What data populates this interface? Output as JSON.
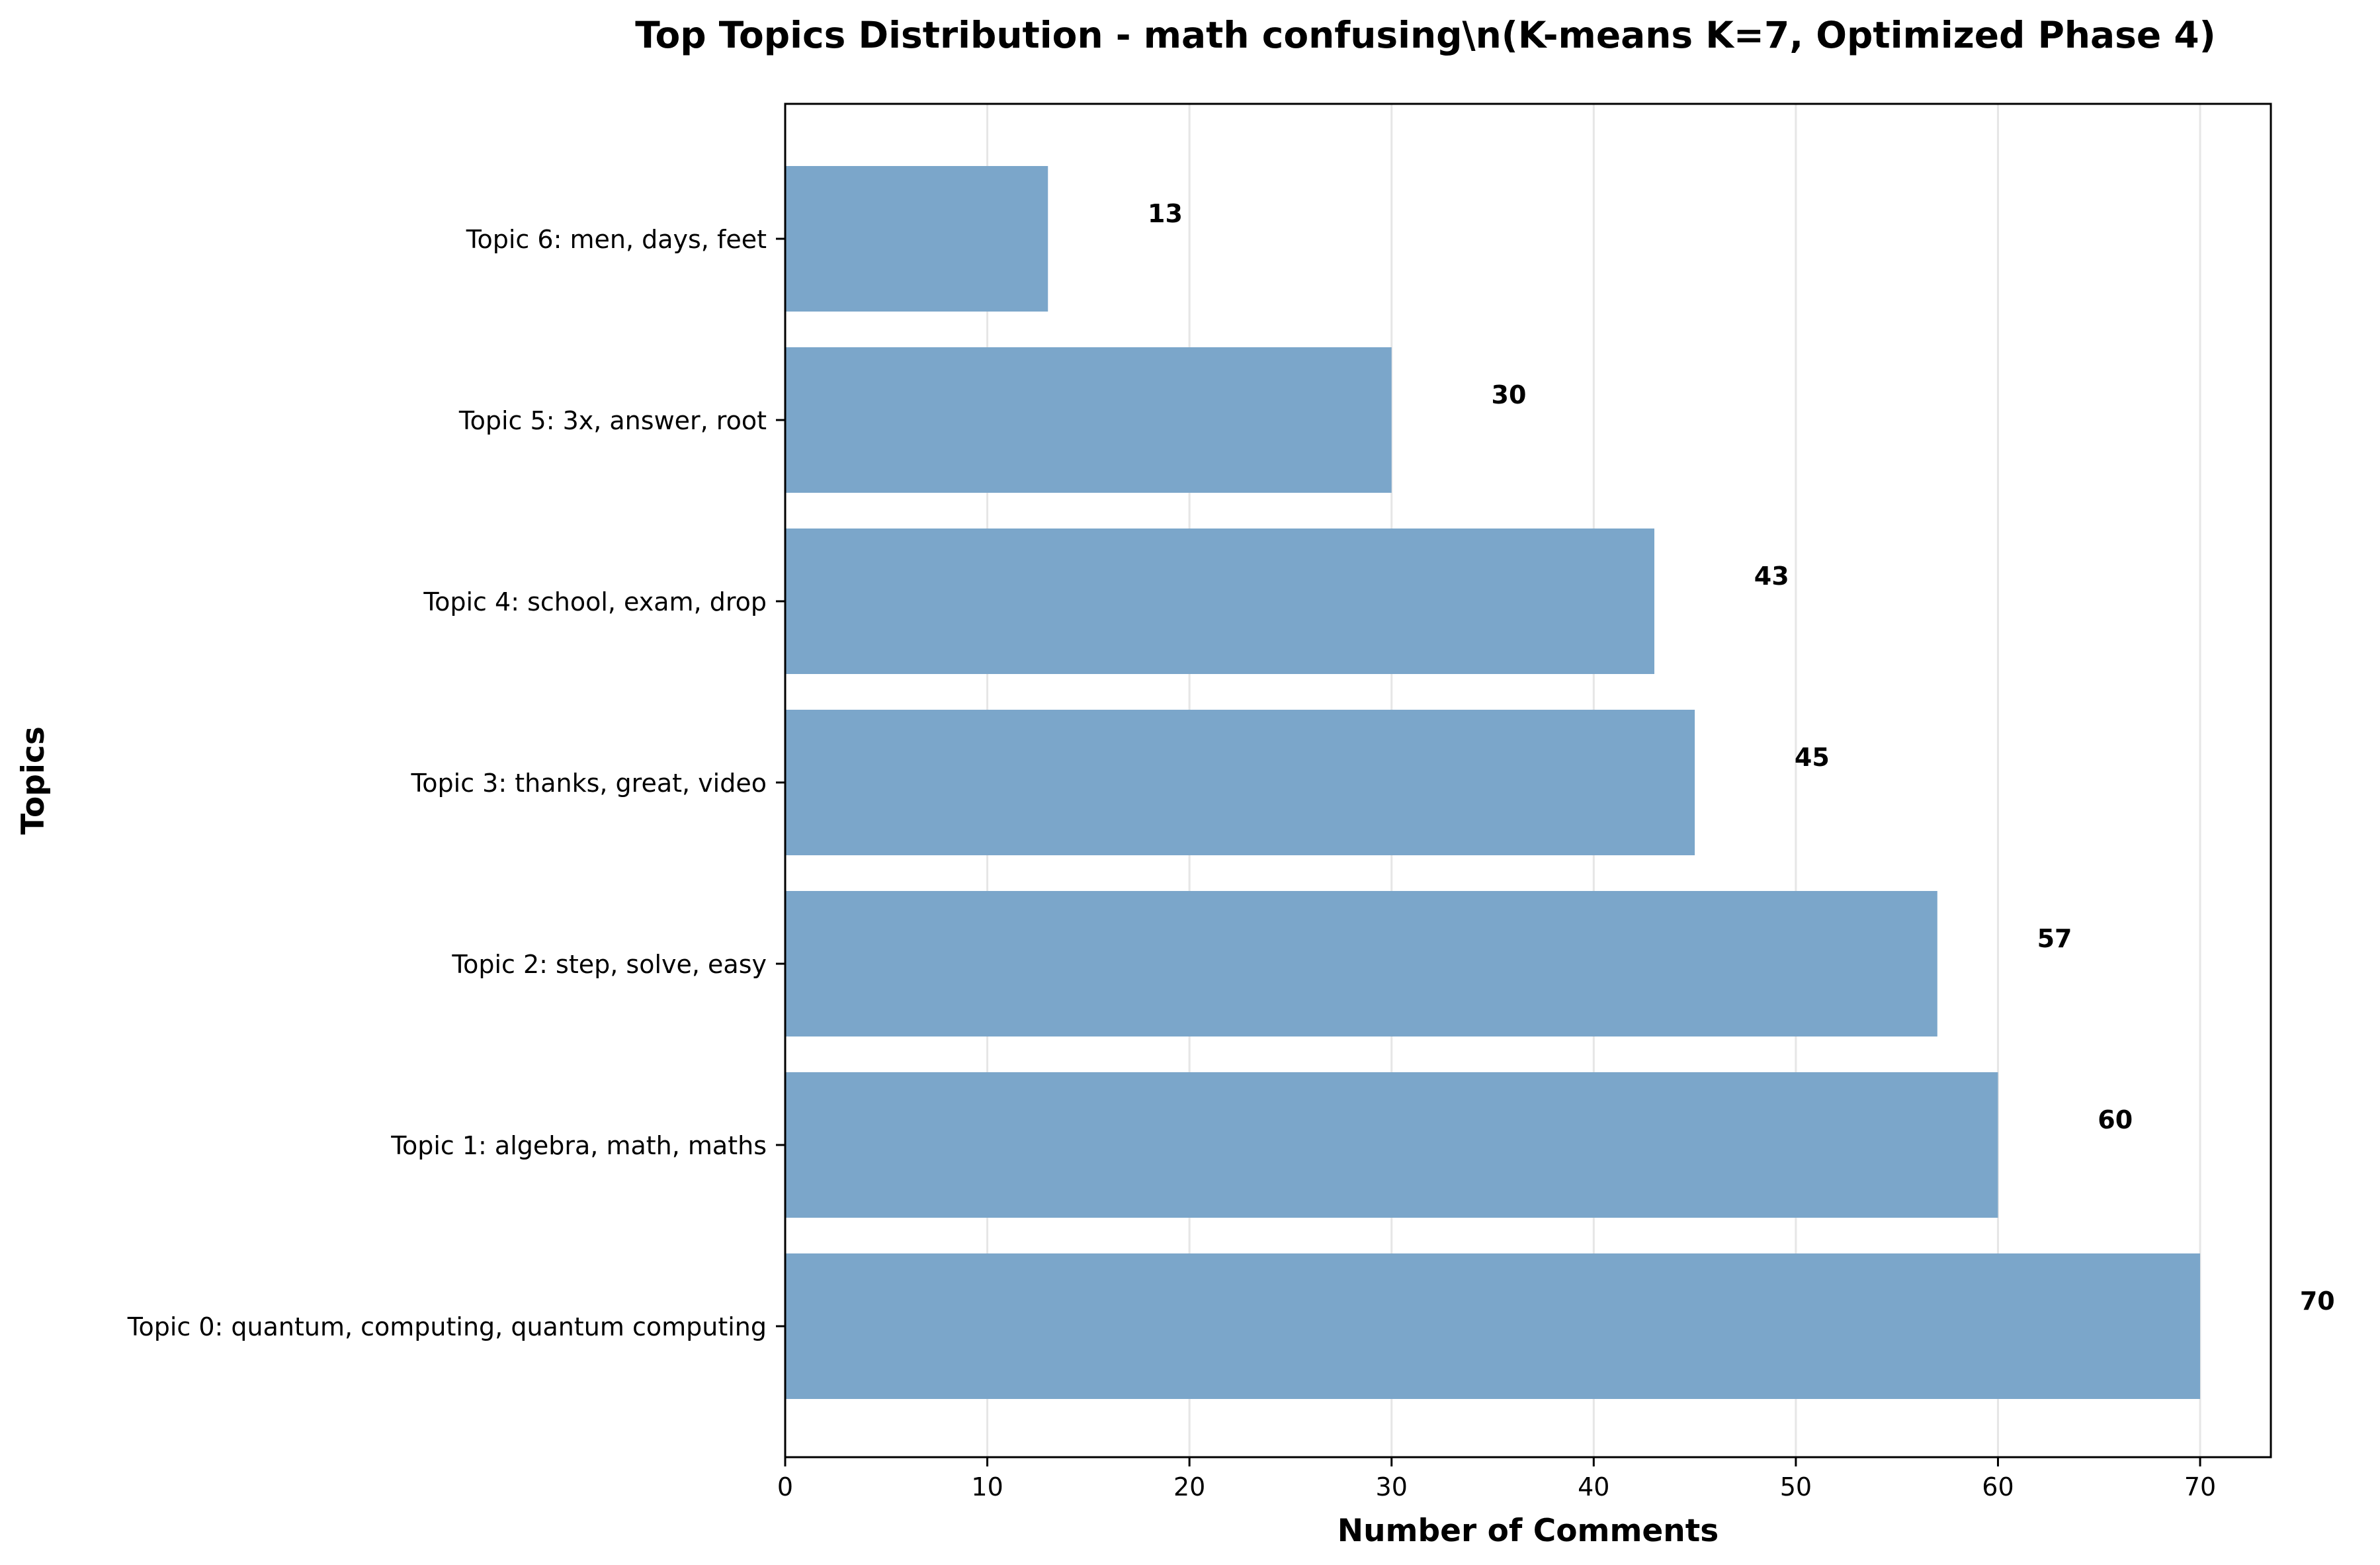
{
  "chart_data": {
    "type": "bar",
    "orientation": "horizontal",
    "title": "Top Topics Distribution - math confusing\\n(K-means K=7, Optimized Phase 4)",
    "xlabel": "Number of Comments",
    "ylabel": "Topics",
    "categories": [
      "Topic 0: quantum, computing, quantum computing",
      "Topic 1: algebra, math, maths",
      "Topic 2: step, solve, easy",
      "Topic 3: thanks, great, video",
      "Topic 4: school, exam, drop",
      "Topic 5: 3x, answer, root",
      "Topic 6: men, days, feet"
    ],
    "values": [
      70,
      60,
      57,
      45,
      43,
      30,
      13
    ],
    "data_labels": [
      "70",
      "60",
      "57",
      "45",
      "43",
      "30",
      "13"
    ],
    "xlim": [
      0,
      73.5
    ],
    "xticks": [
      0,
      10,
      20,
      30,
      40,
      50,
      60,
      70
    ],
    "xtick_labels": [
      "0",
      "10",
      "20",
      "30",
      "40",
      "50",
      "60",
      "70"
    ],
    "grid": "x-axis vertical lines",
    "bar_color": "#7ba6ca",
    "grid_color": "#e6e6e6",
    "axis_color": "#000000"
  }
}
